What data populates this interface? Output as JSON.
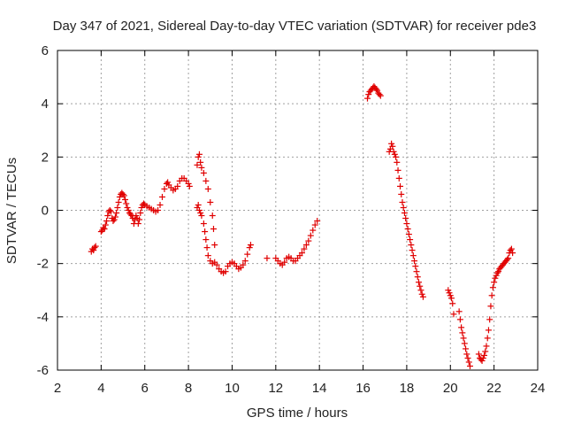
{
  "chart_data": {
    "type": "scatter",
    "title": "Day 347 of 2021, Sidereal Day-to-day VTEC variation (SDTVAR) for receiver pde3",
    "xlabel": "GPS time / hours",
    "ylabel": "SDTVAR / TECUs",
    "xlim": [
      2,
      24
    ],
    "ylim": [
      -6,
      6
    ],
    "xticks": [
      2,
      4,
      6,
      8,
      10,
      12,
      14,
      16,
      18,
      20,
      22,
      24
    ],
    "yticks": [
      -6,
      -4,
      -2,
      0,
      2,
      4,
      6
    ],
    "grid": true,
    "marker": "+",
    "color": "#e00000",
    "series": [
      {
        "name": "SDTVAR",
        "points": [
          [
            3.55,
            -1.55
          ],
          [
            3.6,
            -1.45
          ],
          [
            3.65,
            -1.5
          ],
          [
            3.7,
            -1.4
          ],
          [
            3.75,
            -1.35
          ],
          [
            4.0,
            -0.8
          ],
          [
            4.05,
            -0.75
          ],
          [
            4.1,
            -0.65
          ],
          [
            4.15,
            -0.7
          ],
          [
            4.2,
            -0.55
          ],
          [
            4.25,
            -0.4
          ],
          [
            4.3,
            -0.2
          ],
          [
            4.35,
            -0.05
          ],
          [
            4.4,
            0.0
          ],
          [
            4.45,
            -0.05
          ],
          [
            4.5,
            -0.3
          ],
          [
            4.55,
            -0.4
          ],
          [
            4.6,
            -0.35
          ],
          [
            4.65,
            -0.25
          ],
          [
            4.7,
            -0.1
          ],
          [
            4.75,
            0.1
          ],
          [
            4.8,
            0.3
          ],
          [
            4.85,
            0.5
          ],
          [
            4.9,
            0.6
          ],
          [
            4.95,
            0.65
          ],
          [
            5.0,
            0.6
          ],
          [
            5.05,
            0.55
          ],
          [
            5.1,
            0.4
          ],
          [
            5.15,
            0.25
          ],
          [
            5.2,
            0.1
          ],
          [
            5.25,
            0.0
          ],
          [
            5.3,
            -0.1
          ],
          [
            5.35,
            -0.15
          ],
          [
            5.4,
            -0.2
          ],
          [
            5.45,
            -0.3
          ],
          [
            5.5,
            -0.5
          ],
          [
            5.55,
            -0.35
          ],
          [
            5.6,
            -0.2
          ],
          [
            5.65,
            -0.3
          ],
          [
            5.7,
            -0.5
          ],
          [
            5.75,
            -0.35
          ],
          [
            5.8,
            -0.1
          ],
          [
            5.85,
            0.1
          ],
          [
            5.9,
            0.2
          ],
          [
            5.95,
            0.25
          ],
          [
            6.0,
            0.2
          ],
          [
            6.1,
            0.15
          ],
          [
            6.2,
            0.1
          ],
          [
            6.3,
            0.05
          ],
          [
            6.4,
            0.0
          ],
          [
            6.5,
            -0.05
          ],
          [
            6.6,
            0.0
          ],
          [
            6.7,
            0.2
          ],
          [
            6.8,
            0.5
          ],
          [
            6.9,
            0.8
          ],
          [
            7.0,
            1.0
          ],
          [
            7.05,
            1.05
          ],
          [
            7.1,
            0.95
          ],
          [
            7.2,
            0.85
          ],
          [
            7.3,
            0.75
          ],
          [
            7.4,
            0.8
          ],
          [
            7.5,
            0.9
          ],
          [
            7.6,
            1.1
          ],
          [
            7.7,
            1.2
          ],
          [
            7.8,
            1.2
          ],
          [
            7.9,
            1.1
          ],
          [
            8.0,
            1.0
          ],
          [
            8.05,
            0.9
          ],
          [
            8.4,
            1.7
          ],
          [
            8.45,
            2.0
          ],
          [
            8.5,
            2.1
          ],
          [
            8.55,
            1.8
          ],
          [
            8.6,
            1.6
          ],
          [
            8.7,
            1.4
          ],
          [
            8.8,
            1.1
          ],
          [
            8.9,
            0.8
          ],
          [
            9.0,
            0.3
          ],
          [
            9.1,
            -0.2
          ],
          [
            9.15,
            -0.7
          ],
          [
            9.2,
            -1.3
          ],
          [
            8.4,
            0.1
          ],
          [
            8.45,
            0.2
          ],
          [
            8.5,
            0.0
          ],
          [
            8.55,
            -0.1
          ],
          [
            8.6,
            -0.2
          ],
          [
            8.7,
            -0.5
          ],
          [
            8.75,
            -0.8
          ],
          [
            8.8,
            -1.1
          ],
          [
            8.85,
            -1.4
          ],
          [
            8.9,
            -1.7
          ],
          [
            9.0,
            -1.9
          ],
          [
            9.1,
            -2.0
          ],
          [
            9.2,
            -1.95
          ],
          [
            9.3,
            -2.05
          ],
          [
            9.4,
            -2.2
          ],
          [
            9.5,
            -2.3
          ],
          [
            9.6,
            -2.35
          ],
          [
            9.7,
            -2.3
          ],
          [
            9.8,
            -2.1
          ],
          [
            9.9,
            -2.0
          ],
          [
            10.0,
            -1.95
          ],
          [
            10.1,
            -2.0
          ],
          [
            10.2,
            -2.1
          ],
          [
            10.3,
            -2.2
          ],
          [
            10.4,
            -2.15
          ],
          [
            10.5,
            -2.05
          ],
          [
            10.6,
            -1.9
          ],
          [
            10.7,
            -1.65
          ],
          [
            10.8,
            -1.4
          ],
          [
            10.85,
            -1.3
          ],
          [
            11.6,
            -1.8
          ],
          [
            12.0,
            -1.8
          ],
          [
            12.1,
            -1.9
          ],
          [
            12.2,
            -2.0
          ],
          [
            12.3,
            -2.05
          ],
          [
            12.4,
            -1.95
          ],
          [
            12.5,
            -1.8
          ],
          [
            12.6,
            -1.75
          ],
          [
            12.7,
            -1.8
          ],
          [
            12.8,
            -1.9
          ],
          [
            12.9,
            -1.9
          ],
          [
            13.0,
            -1.8
          ],
          [
            13.1,
            -1.7
          ],
          [
            13.2,
            -1.6
          ],
          [
            13.3,
            -1.45
          ],
          [
            13.4,
            -1.3
          ],
          [
            13.5,
            -1.15
          ],
          [
            13.6,
            -0.95
          ],
          [
            13.7,
            -0.75
          ],
          [
            13.8,
            -0.55
          ],
          [
            13.9,
            -0.4
          ],
          [
            16.2,
            4.2
          ],
          [
            16.25,
            4.35
          ],
          [
            16.3,
            4.45
          ],
          [
            16.35,
            4.5
          ],
          [
            16.4,
            4.55
          ],
          [
            16.45,
            4.6
          ],
          [
            16.5,
            4.65
          ],
          [
            16.55,
            4.6
          ],
          [
            16.6,
            4.55
          ],
          [
            16.65,
            4.5
          ],
          [
            16.7,
            4.4
          ],
          [
            16.75,
            4.35
          ],
          [
            16.8,
            4.3
          ],
          [
            17.2,
            2.2
          ],
          [
            17.25,
            2.3
          ],
          [
            17.3,
            2.5
          ],
          [
            17.35,
            2.4
          ],
          [
            17.4,
            2.2
          ],
          [
            17.45,
            2.1
          ],
          [
            17.5,
            2.0
          ],
          [
            17.55,
            1.8
          ],
          [
            17.6,
            1.5
          ],
          [
            17.65,
            1.2
          ],
          [
            17.7,
            0.9
          ],
          [
            17.75,
            0.6
          ],
          [
            17.8,
            0.3
          ],
          [
            17.85,
            0.1
          ],
          [
            17.9,
            -0.1
          ],
          [
            17.95,
            -0.3
          ],
          [
            18.0,
            -0.5
          ],
          [
            18.05,
            -0.7
          ],
          [
            18.1,
            -0.9
          ],
          [
            18.15,
            -1.1
          ],
          [
            18.2,
            -1.3
          ],
          [
            18.25,
            -1.5
          ],
          [
            18.3,
            -1.7
          ],
          [
            18.35,
            -1.9
          ],
          [
            18.4,
            -2.1
          ],
          [
            18.45,
            -2.3
          ],
          [
            18.5,
            -2.5
          ],
          [
            18.55,
            -2.7
          ],
          [
            18.6,
            -2.85
          ],
          [
            18.65,
            -3.0
          ],
          [
            18.7,
            -3.15
          ],
          [
            18.75,
            -3.25
          ],
          [
            19.9,
            -3.0
          ],
          [
            19.95,
            -3.1
          ],
          [
            20.0,
            -3.2
          ],
          [
            20.05,
            -3.3
          ],
          [
            20.1,
            -3.5
          ],
          [
            20.15,
            -3.9
          ],
          [
            20.4,
            -3.8
          ],
          [
            20.45,
            -4.1
          ],
          [
            20.5,
            -4.4
          ],
          [
            20.55,
            -4.6
          ],
          [
            20.6,
            -4.8
          ],
          [
            20.65,
            -5.0
          ],
          [
            20.7,
            -5.2
          ],
          [
            20.75,
            -5.4
          ],
          [
            20.8,
            -5.55
          ],
          [
            20.85,
            -5.7
          ],
          [
            20.9,
            -5.85
          ],
          [
            21.3,
            -5.4
          ],
          [
            21.35,
            -5.55
          ],
          [
            21.4,
            -5.6
          ],
          [
            21.45,
            -5.65
          ],
          [
            21.5,
            -5.55
          ],
          [
            21.55,
            -5.45
          ],
          [
            21.6,
            -5.3
          ],
          [
            21.65,
            -5.1
          ],
          [
            21.7,
            -4.8
          ],
          [
            21.75,
            -4.5
          ],
          [
            21.8,
            -4.1
          ],
          [
            21.85,
            -3.6
          ],
          [
            21.9,
            -3.2
          ],
          [
            21.95,
            -2.9
          ],
          [
            22.0,
            -2.7
          ],
          [
            22.05,
            -2.55
          ],
          [
            22.1,
            -2.45
          ],
          [
            22.15,
            -2.35
          ],
          [
            22.2,
            -2.3
          ],
          [
            22.25,
            -2.2
          ],
          [
            22.3,
            -2.15
          ],
          [
            22.35,
            -2.1
          ],
          [
            22.4,
            -2.05
          ],
          [
            22.45,
            -2.0
          ],
          [
            22.5,
            -1.95
          ],
          [
            22.55,
            -1.9
          ],
          [
            22.6,
            -1.85
          ],
          [
            22.65,
            -1.8
          ],
          [
            22.7,
            -1.6
          ],
          [
            22.75,
            -1.5
          ],
          [
            22.8,
            -1.45
          ],
          [
            22.85,
            -1.6
          ]
        ]
      }
    ]
  }
}
